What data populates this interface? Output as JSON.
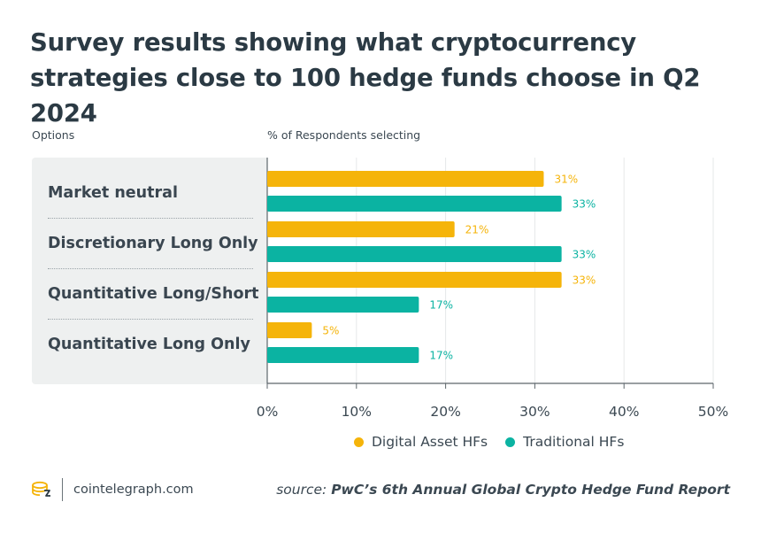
{
  "title": "Survey results showing what cryptocurrency strategies close to 100 hedge funds choose in Q2 2024",
  "header": {
    "options_label": "Options",
    "percent_label": "% of Respondents selecting"
  },
  "legend": {
    "digital": "Digital Asset HFs",
    "traditional": "Traditional HFs"
  },
  "footer": {
    "brand": "cointelegraph.com",
    "source_prefix": "source: ",
    "source_name": "PwC’s 6th Annual Global Crypto Hedge Fund Report"
  },
  "colors": {
    "digital": "#f5b40a",
    "traditional": "#0bb3a2"
  },
  "chart_data": {
    "type": "bar",
    "orientation": "horizontal",
    "categories": [
      "Market neutral",
      "Discretionary Long Only",
      "Quantitative Long/Short",
      "Quantitative Long Only"
    ],
    "series": [
      {
        "name": "Digital Asset HFs",
        "values": [
          31,
          21,
          33,
          5
        ],
        "labels": [
          "31%",
          "21%",
          "33%",
          "5%"
        ]
      },
      {
        "name": "Traditional HFs",
        "values": [
          33,
          33,
          17,
          17
        ],
        "labels": [
          "33%",
          "33%",
          "17%",
          "17%"
        ]
      }
    ],
    "xlim": [
      0,
      50
    ],
    "xticks": [
      0,
      10,
      20,
      30,
      40,
      50
    ],
    "xtick_labels": [
      "0%",
      "10%",
      "20%",
      "30%",
      "40%",
      "50%"
    ],
    "grid": true,
    "legend_position": "bottom"
  }
}
